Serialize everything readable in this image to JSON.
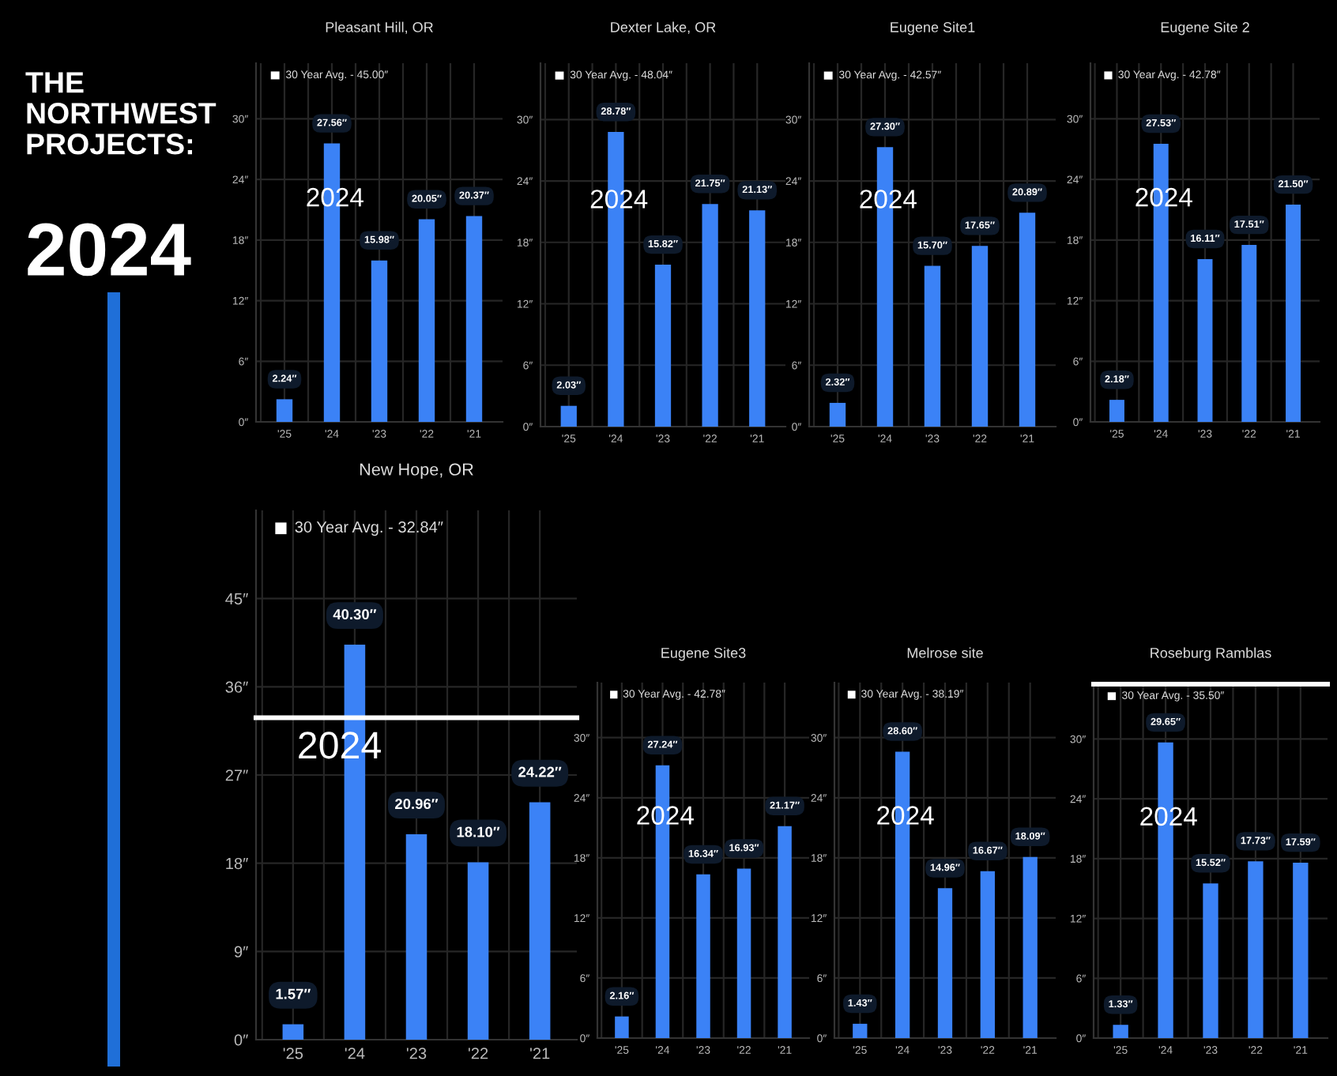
{
  "chart_data": [
    {
      "type": "other",
      "title": "THE\nNORTHWEST\nPROJECTS:",
      "subtitle": "2024"
    },
    {
      "type": "bar",
      "title": "Pleasant Hill, OR",
      "categories": [
        "'25",
        "'24",
        "'23",
        "'22",
        "'21"
      ],
      "values": [
        2.24,
        27.56,
        15.98,
        20.05,
        20.37
      ],
      "value_labels": [
        "2.24″",
        "27.56″",
        "15.98″",
        "20.05″",
        "20.37″"
      ],
      "color": "#3b82f6",
      "ylim": [
        0,
        35.5
      ],
      "yticks": [
        {
          "value": 0,
          "label": "0″"
        },
        {
          "value": 6,
          "label": "6″"
        },
        {
          "value": 12,
          "label": "12″"
        },
        {
          "value": 18,
          "label": "18″"
        },
        {
          "value": 24,
          "label": "24″"
        },
        {
          "value": 30,
          "label": "30″"
        }
      ],
      "grid": true,
      "annotations": [
        "30 Year Avg. - 45.00″",
        "2024"
      ]
    },
    {
      "type": "bar",
      "title": "Dexter Lake, OR",
      "categories": [
        "'25",
        "'24",
        "'23",
        "'22",
        "'21"
      ],
      "values": [
        2.03,
        28.78,
        15.82,
        21.75,
        21.13
      ],
      "value_labels": [
        "2.03″",
        "28.78″",
        "15.82″",
        "21.75″",
        "21.13″"
      ],
      "color": "#3b82f6",
      "ylim": [
        0,
        35.5
      ],
      "yticks": [
        {
          "value": 0,
          "label": "0″"
        },
        {
          "value": 6,
          "label": "6″"
        },
        {
          "value": 12,
          "label": "12″"
        },
        {
          "value": 18,
          "label": "18″"
        },
        {
          "value": 24,
          "label": "24″"
        },
        {
          "value": 30,
          "label": "30″"
        }
      ],
      "grid": true,
      "annotations": [
        "30 Year Avg. - 48.04″",
        "2024"
      ]
    },
    {
      "type": "bar",
      "title": "Eugene Site1",
      "categories": [
        "'25",
        "'24",
        "'23",
        "'22",
        "'21"
      ],
      "values": [
        2.32,
        27.3,
        15.7,
        17.65,
        20.89
      ],
      "value_labels": [
        "2.32″",
        "27.30″",
        "15.70″",
        "17.65″",
        "20.89″"
      ],
      "color": "#3b82f6",
      "ylim": [
        0,
        35.5
      ],
      "yticks": [
        {
          "value": 0,
          "label": "0″"
        },
        {
          "value": 6,
          "label": "6″"
        },
        {
          "value": 12,
          "label": "12″"
        },
        {
          "value": 18,
          "label": "18″"
        },
        {
          "value": 24,
          "label": "24″"
        },
        {
          "value": 30,
          "label": "30″"
        }
      ],
      "grid": true,
      "annotations": [
        "30 Year Avg. - 42.57″",
        "2024"
      ]
    },
    {
      "type": "bar",
      "title": "Eugene Site 2",
      "categories": [
        "'25",
        "'24",
        "'23",
        "'22",
        "'21"
      ],
      "values": [
        2.18,
        27.53,
        16.11,
        17.51,
        21.5
      ],
      "value_labels": [
        "2.18″",
        "27.53″",
        "16.11″",
        "17.51″",
        "21.50″"
      ],
      "color": "#3b82f6",
      "ylim": [
        0,
        35.5
      ],
      "yticks": [
        {
          "value": 0,
          "label": "0″"
        },
        {
          "value": 6,
          "label": "6″"
        },
        {
          "value": 12,
          "label": "12″"
        },
        {
          "value": 18,
          "label": "18″"
        },
        {
          "value": 24,
          "label": "24″"
        },
        {
          "value": 30,
          "label": "30″"
        }
      ],
      "grid": true,
      "annotations": [
        "30 Year Avg. - 42.78″",
        "2024"
      ]
    },
    {
      "type": "bar",
      "title": "New Hope, OR",
      "categories": [
        "'25",
        "'24",
        "'23",
        "'22",
        "'21"
      ],
      "values": [
        1.57,
        40.3,
        20.96,
        18.1,
        24.22
      ],
      "value_labels": [
        "1.57″",
        "40.30″",
        "20.96″",
        "18.10″",
        "24.22″"
      ],
      "color": "#3b82f6",
      "ylim": [
        0,
        54
      ],
      "yticks": [
        {
          "value": 0,
          "label": "0″"
        },
        {
          "value": 9,
          "label": "9″"
        },
        {
          "value": 18,
          "label": "18″"
        },
        {
          "value": 27,
          "label": "27″"
        },
        {
          "value": 36,
          "label": "36″"
        },
        {
          "value": 45,
          "label": "45″"
        }
      ],
      "grid": true,
      "ref_lines": [
        {
          "axis": "y",
          "value": 32.84,
          "color": "#ffffff"
        }
      ],
      "annotations": [
        "30 Year Avg. - 32.84″",
        "2024"
      ]
    },
    {
      "type": "bar",
      "title": "Eugene Site3",
      "categories": [
        "'25",
        "'24",
        "'23",
        "'22",
        "'21"
      ],
      "values": [
        2.16,
        27.24,
        16.34,
        16.93,
        21.17
      ],
      "value_labels": [
        "2.16″",
        "27.24″",
        "16.34″",
        "16.93″",
        "21.17″"
      ],
      "color": "#3b82f6",
      "ylim": [
        0,
        35.5
      ],
      "yticks": [
        {
          "value": 0,
          "label": "0″"
        },
        {
          "value": 6,
          "label": "6″"
        },
        {
          "value": 12,
          "label": "12″"
        },
        {
          "value": 18,
          "label": "18″"
        },
        {
          "value": 24,
          "label": "24″"
        },
        {
          "value": 30,
          "label": "30″"
        }
      ],
      "grid": true,
      "annotations": [
        "30 Year Avg. - 42.78″",
        "2024"
      ]
    },
    {
      "type": "bar",
      "title": "Melrose site",
      "categories": [
        "'25",
        "'24",
        "'23",
        "'22",
        "'21"
      ],
      "values": [
        1.43,
        28.6,
        14.96,
        16.67,
        18.09
      ],
      "value_labels": [
        "1.43″",
        "28.60″",
        "14.96″",
        "16.67″",
        "18.09″"
      ],
      "color": "#3b82f6",
      "ylim": [
        0,
        35.5
      ],
      "yticks": [
        {
          "value": 0,
          "label": "0″"
        },
        {
          "value": 6,
          "label": "6″"
        },
        {
          "value": 12,
          "label": "12″"
        },
        {
          "value": 18,
          "label": "18″"
        },
        {
          "value": 24,
          "label": "24″"
        },
        {
          "value": 30,
          "label": "30″"
        }
      ],
      "grid": true,
      "annotations": [
        "30 Year Avg. - 38.19″",
        "2024"
      ]
    },
    {
      "type": "bar",
      "title": "Roseburg Ramblas",
      "categories": [
        "'25",
        "'24",
        "'23",
        "'22",
        "'21"
      ],
      "values": [
        1.33,
        29.65,
        15.52,
        17.73,
        17.59
      ],
      "value_labels": [
        "1.33″",
        "29.65″",
        "15.52″",
        "17.73″",
        "17.59″"
      ],
      "color": "#3b82f6",
      "ylim": [
        0,
        35.5
      ],
      "yticks": [
        {
          "value": 0,
          "label": "0″"
        },
        {
          "value": 6,
          "label": "6″"
        },
        {
          "value": 12,
          "label": "12″"
        },
        {
          "value": 18,
          "label": "18″"
        },
        {
          "value": 24,
          "label": "24″"
        },
        {
          "value": 30,
          "label": "30″"
        }
      ],
      "grid": true,
      "ref_lines": [
        {
          "axis": "y",
          "value": 35.5,
          "color": "#ffffff"
        }
      ],
      "annotations": [
        "30 Year Avg. - 35.50″",
        "2024"
      ]
    }
  ]
}
